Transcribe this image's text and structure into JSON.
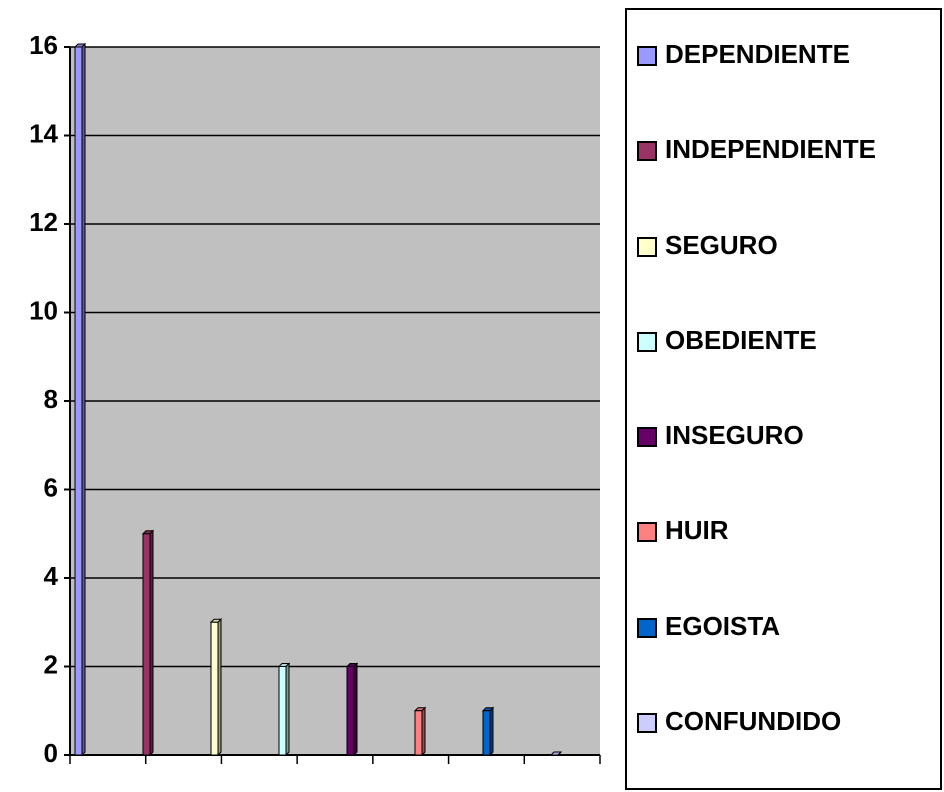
{
  "chart_data": {
    "type": "bar",
    "categories": [
      null
    ],
    "series": [
      {
        "name": "DEPENDIENTE",
        "color": "#9999ff",
        "values": [
          16
        ]
      },
      {
        "name": "INDEPENDIENTE",
        "color": "#993366",
        "values": [
          5
        ]
      },
      {
        "name": "SEGURO",
        "color": "#ffffcc",
        "values": [
          3
        ]
      },
      {
        "name": "OBEDIENTE",
        "color": "#ccffff",
        "values": [
          2
        ]
      },
      {
        "name": "INSEGURO",
        "color": "#660066",
        "values": [
          2
        ]
      },
      {
        "name": "HUIR",
        "color": "#ff8080",
        "values": [
          1
        ]
      },
      {
        "name": "EGOISTA",
        "color": "#0066cc",
        "values": [
          1
        ]
      },
      {
        "name": "CONFUNDIDO",
        "color": "#ccccff",
        "values": [
          0
        ]
      }
    ],
    "ylim": [
      0,
      16
    ],
    "yticks": [
      0,
      2,
      4,
      6,
      8,
      10,
      12,
      14,
      16
    ],
    "grid": true,
    "plot_background": "#c0c0c0",
    "legend": "right"
  }
}
